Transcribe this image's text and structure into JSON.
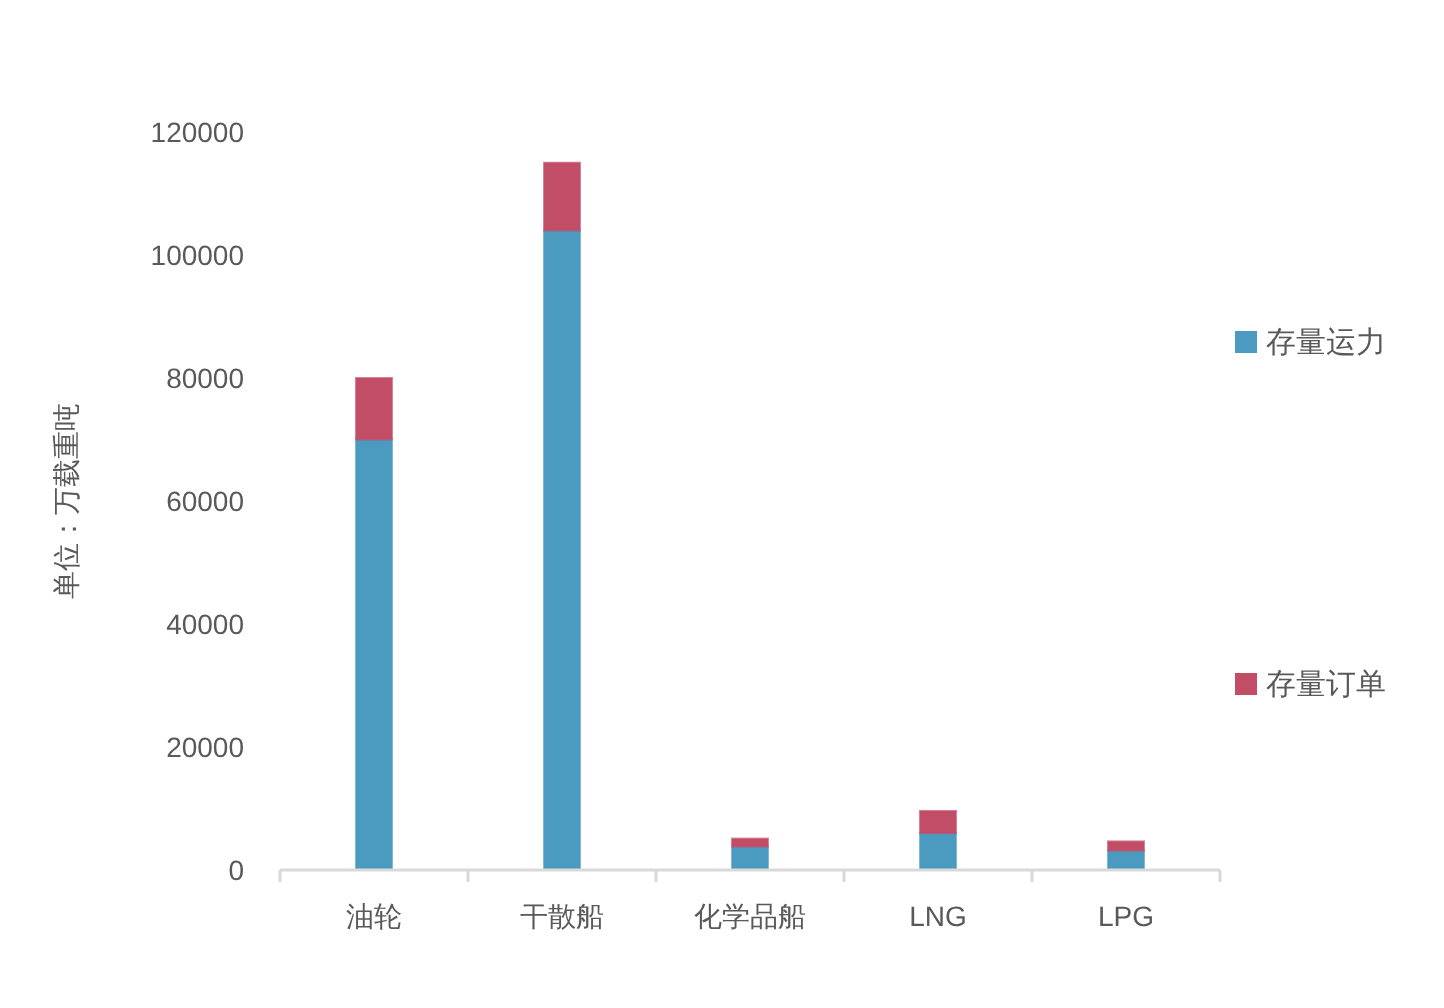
{
  "chart_data": {
    "type": "bar",
    "stacked": true,
    "ylabel": "单位：万载重吨",
    "categories": [
      "油轮",
      "干散船",
      "化学品船",
      "LNG",
      "LPG"
    ],
    "series": [
      {
        "name": "存量运力",
        "color": "#4b9abf",
        "values": [
          70000,
          104000,
          3800,
          6000,
          3150
        ]
      },
      {
        "name": "存量订单",
        "color": "#c24d66",
        "values": [
          10000,
          11000,
          1300,
          3600,
          1500
        ]
      }
    ],
    "ylim": [
      0,
      120000
    ],
    "yticks": [
      0,
      20000,
      40000,
      60000,
      80000,
      100000,
      120000
    ],
    "grid": false,
    "legend": "right"
  }
}
